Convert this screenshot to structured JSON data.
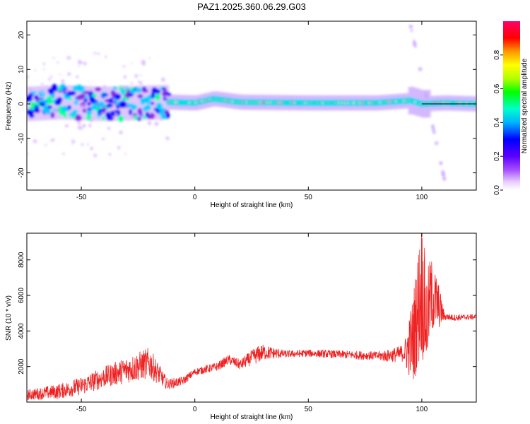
{
  "title": "PAZ1.2025.360.06.29.G03",
  "colors": {
    "snr_line": "#ee2222",
    "axis": "#000000",
    "spectrum_band": "rainbow"
  },
  "chart_data": [
    {
      "type": "heatmap",
      "xlabel": "Height of straight line (km)",
      "ylabel": "Frequency (Hz)",
      "xlim": [
        -74,
        124
      ],
      "ylim": [
        -25,
        24
      ],
      "x_ticks": [
        -50,
        0,
        50,
        100
      ],
      "y_ticks": [
        -20,
        -10,
        0,
        10,
        20
      ],
      "colorbar": {
        "label": "Normalized spectral amplitude",
        "range": [
          0,
          1
        ],
        "ticks": [
          "0.0",
          "0.2",
          "0.4",
          "0.6",
          "0.8"
        ],
        "colormap": "rainbow (white-violet-blue-cyan-green-yellow-red-magenta)"
      },
      "trace": {
        "description_points": [
          [
            -74,
            0
          ],
          [
            -60,
            0.5
          ],
          [
            -40,
            0
          ],
          [
            -15,
            0.5
          ],
          [
            -10,
            0.5
          ],
          [
            0,
            0.3
          ],
          [
            8,
            1.5
          ],
          [
            20,
            0.5
          ],
          [
            50,
            0.3
          ],
          [
            80,
            0.3
          ],
          [
            95,
            1.0
          ],
          [
            100,
            0
          ],
          [
            110,
            0.3
          ],
          [
            124,
            0
          ]
        ],
        "noisy_region_x": [
          -74,
          -12
        ],
        "spreading_region_x": [
          93,
          103
        ]
      }
    },
    {
      "type": "line",
      "xlabel": "Height of straight line (km)",
      "ylabel": "SNR (10 * v/v)",
      "xlim": [
        -74,
        124
      ],
      "ylim": [
        0,
        9500
      ],
      "x_ticks": [
        -50,
        0,
        50,
        100
      ],
      "y_ticks": [
        2000,
        4000,
        6000,
        8000
      ],
      "series": [
        {
          "envelope": [
            [
              -74,
              400
            ],
            [
              -60,
              600
            ],
            [
              -50,
              900
            ],
            [
              -40,
              1400
            ],
            [
              -30,
              1800
            ],
            [
              -20,
              2200
            ],
            [
              -12,
              1000
            ],
            [
              -5,
              1200
            ],
            [
              0,
              1700
            ],
            [
              10,
              2000
            ],
            [
              15,
              2400
            ],
            [
              20,
              2100
            ],
            [
              25,
              2500
            ],
            [
              30,
              2800
            ],
            [
              40,
              2700
            ],
            [
              50,
              2750
            ],
            [
              60,
              2700
            ],
            [
              70,
              2650
            ],
            [
              80,
              2600
            ],
            [
              85,
              2600
            ],
            [
              90,
              2700
            ],
            [
              93,
              2800
            ],
            [
              96,
              3500
            ],
            [
              98,
              5000
            ],
            [
              100,
              6500
            ],
            [
              102,
              4500
            ],
            [
              104,
              6000
            ],
            [
              107,
              5500
            ],
            [
              110,
              4800
            ],
            [
              115,
              4750
            ],
            [
              124,
              4800
            ]
          ],
          "noise_amplitude": [
            [
              -74,
              300
            ],
            [
              -40,
              600
            ],
            [
              -20,
              900
            ],
            [
              -12,
              300
            ],
            [
              0,
              200
            ],
            [
              20,
              300
            ],
            [
              28,
              500
            ],
            [
              40,
              200
            ],
            [
              80,
              250
            ],
            [
              92,
              500
            ],
            [
              96,
              2500
            ],
            [
              100,
              4000
            ],
            [
              103,
              2500
            ],
            [
              107,
              1500
            ],
            [
              110,
              200
            ],
            [
              124,
              150
            ]
          ]
        }
      ]
    }
  ]
}
